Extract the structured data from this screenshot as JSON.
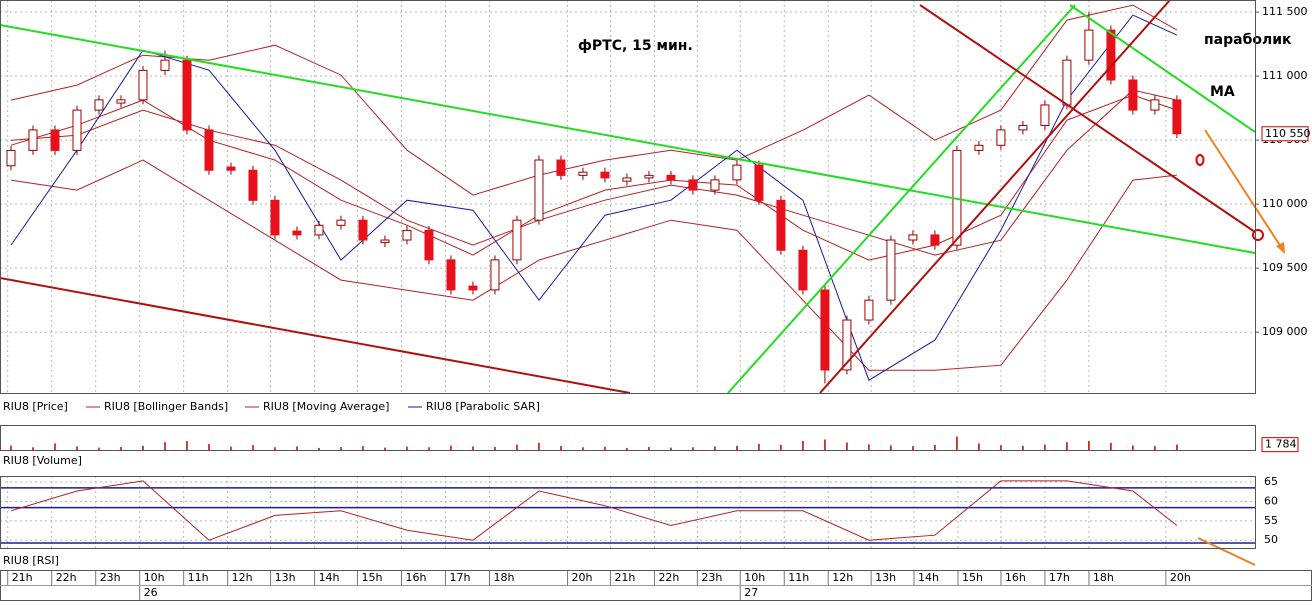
{
  "chart_data": [
    {
      "type": "candlestick",
      "name": "RIU8 [Price]",
      "title": "фРТС, 15 мин.",
      "annotations": [
        "параболик",
        "MA"
      ],
      "xlim": [
        0,
        114.1
      ],
      "ylim": [
        108525,
        111595
      ],
      "yticks": [
        {
          "value": 111500,
          "label": "111 500"
        },
        {
          "value": 111000,
          "label": "111 000"
        },
        {
          "value": 110500,
          "label": "110 500"
        },
        {
          "value": 110000,
          "label": "110 000"
        },
        {
          "value": 109500,
          "label": "109 500"
        },
        {
          "value": 109000,
          "label": "109 000"
        }
      ],
      "last_value": {
        "value": 110550,
        "label": "110 550"
      },
      "grid": true,
      "up_color": "#ffffff",
      "down_color": "#e8101a",
      "wick_color": "#8b0000",
      "x": [
        1,
        3,
        5,
        7,
        9,
        11,
        13,
        15,
        17,
        19,
        21,
        23,
        25,
        27,
        29,
        31,
        33,
        35,
        37,
        39,
        41,
        43,
        45,
        47,
        49,
        51,
        53,
        55,
        57,
        59,
        61,
        63,
        65,
        67,
        69,
        71,
        73,
        75,
        77,
        79,
        81,
        83,
        85,
        87,
        89,
        91,
        93,
        95,
        97,
        99,
        101,
        103,
        105,
        107
      ],
      "open": [
        110300,
        110420,
        110580,
        110420,
        110735,
        110790,
        110815,
        111045,
        111125,
        110580,
        110290,
        110265,
        110030,
        109790,
        109760,
        109835,
        109875,
        109700,
        109720,
        109795,
        109565,
        109360,
        109330,
        109565,
        109875,
        110345,
        110225,
        110250,
        110180,
        110205,
        110225,
        110190,
        110110,
        110190,
        110305,
        110030,
        109640,
        109330,
        108705,
        109095,
        109250,
        109720,
        109760,
        109680,
        110420,
        110460,
        110580,
        110615,
        110775,
        111125,
        111360,
        110970,
        110735,
        110815
      ],
      "high": [
        110455,
        110615,
        110615,
        110770,
        110850,
        110850,
        111080,
        111200,
        111160,
        110615,
        110325,
        110300,
        110065,
        109825,
        109870,
        109910,
        109910,
        109755,
        109830,
        109830,
        109600,
        109395,
        109600,
        109910,
        110380,
        110380,
        110285,
        110285,
        110240,
        110260,
        110260,
        110225,
        110225,
        110340,
        110340,
        110065,
        109675,
        109365,
        109130,
        109285,
        109755,
        109795,
        109795,
        110455,
        110495,
        110615,
        110650,
        110810,
        111160,
        111500,
        111395,
        111005,
        110850,
        110850
      ],
      "low": [
        110265,
        110385,
        110385,
        110385,
        110700,
        110755,
        110780,
        111010,
        110545,
        110230,
        110230,
        109995,
        109725,
        109725,
        109725,
        109800,
        109685,
        109665,
        109685,
        109530,
        109295,
        109295,
        109295,
        109530,
        109840,
        110190,
        110190,
        110170,
        110145,
        110170,
        110155,
        110075,
        110075,
        110155,
        109995,
        109605,
        109295,
        108600,
        108670,
        109060,
        109215,
        109685,
        109645,
        109645,
        110385,
        110425,
        110545,
        110580,
        110740,
        111090,
        110935,
        110700,
        110700,
        110515
      ],
      "close": [
        110420,
        110580,
        110420,
        110735,
        110815,
        110815,
        111045,
        111125,
        110580,
        110265,
        110265,
        110030,
        109760,
        109760,
        109835,
        109875,
        109720,
        109720,
        109795,
        109565,
        109330,
        109330,
        109565,
        109875,
        110345,
        110225,
        110250,
        110205,
        110205,
        110225,
        110190,
        110110,
        110190,
        110305,
        110030,
        109640,
        109330,
        108705,
        109095,
        109250,
        109720,
        109760,
        109680,
        110420,
        110460,
        110580,
        110615,
        110775,
        111125,
        111360,
        110970,
        110735,
        110815,
        110550
      ],
      "indicator_x": [
        1,
        7,
        13,
        19,
        25,
        31,
        37,
        43,
        49,
        55,
        61,
        67,
        73,
        79,
        85,
        91,
        97,
        103,
        107
      ],
      "bollinger": {
        "name": "RIU8 [Bollinger Bands]",
        "color": "#b22222",
        "upper": [
          110813,
          110930,
          111164,
          111125,
          111242,
          111008,
          110422,
          110071,
          110227,
          110344,
          110422,
          110344,
          110578,
          110852,
          110500,
          110735,
          111438,
          111555,
          111360
        ],
        "middle": [
          110500,
          110539,
          110735,
          110578,
          110461,
          110188,
          109875,
          109680,
          109875,
          110031,
          110149,
          110071,
          109914,
          109758,
          109602,
          109719,
          110422,
          110891,
          110813
        ],
        "lower": [
          110188,
          110110,
          110344,
          110031,
          109719,
          109407,
          109328,
          109250,
          109563,
          109719,
          109875,
          109797,
          109250,
          108703,
          108703,
          108742,
          109407,
          110188,
          110227
        ]
      },
      "ma": {
        "name": "RIU8 [Moving Average]",
        "color": "#b22222",
        "values": [
          110461,
          110617,
          110813,
          110500,
          110344,
          110031,
          109836,
          109602,
          109914,
          110110,
          110188,
          110149,
          109797,
          109563,
          109680,
          109914,
          110656,
          110852,
          110735
        ]
      },
      "sar": {
        "name": "RIU8 [Parabolic SAR]",
        "color": "#1a1aa0",
        "values": [
          109680,
          110422,
          111203,
          111047,
          110422,
          109563,
          110031,
          109953,
          109250,
          109914,
          110031,
          110422,
          110031,
          108625,
          108938,
          109797,
          110813,
          111477,
          111321
        ]
      }
    },
    {
      "type": "bar",
      "name": "RIU8 [Volume]",
      "color": "#c00000",
      "xlim": [
        0,
        114.1
      ],
      "ylim": [
        0,
        8000
      ],
      "last_value": {
        "value": 1784,
        "label": "1 784"
      },
      "x": [
        1,
        3,
        5,
        7,
        9,
        11,
        13,
        15,
        17,
        19,
        21,
        23,
        25,
        27,
        29,
        31,
        33,
        35,
        37,
        39,
        41,
        43,
        45,
        47,
        49,
        51,
        53,
        55,
        57,
        59,
        61,
        63,
        65,
        67,
        69,
        71,
        73,
        75,
        77,
        79,
        81,
        83,
        85,
        87,
        89,
        91,
        93,
        95,
        97,
        99,
        101,
        103,
        105,
        107
      ],
      "values": [
        1500,
        900,
        2200,
        1200,
        800,
        1000,
        1400,
        2600,
        3000,
        2000,
        1100,
        1600,
        900,
        1200,
        700,
        1000,
        1300,
        800,
        1100,
        900,
        1500,
        1200,
        1000,
        1800,
        2400,
        1300,
        900,
        1100,
        700,
        1000,
        800,
        900,
        1200,
        1400,
        2000,
        1700,
        3000,
        3500,
        2500,
        1900,
        1500,
        1300,
        1700,
        4500,
        2200,
        1600,
        1400,
        1800,
        2600,
        3000,
        2400,
        1500,
        1300,
        1784
      ]
    },
    {
      "type": "line",
      "name": "RIU8 [RSI]",
      "color": "#b22222",
      "level_color": "#1a1aa0",
      "xlim": [
        0,
        114.1
      ],
      "ylim": [
        48,
        66.3
      ],
      "yticks": [
        65,
        60,
        55,
        50
      ],
      "levels": [
        63.5,
        58.4,
        49.3
      ],
      "x": [
        1,
        7,
        13,
        19,
        25,
        31,
        37,
        43,
        49,
        55,
        61,
        67,
        73,
        79,
        85,
        91,
        97,
        103,
        107
      ],
      "values": [
        57.6,
        62.7,
        65.3,
        50.0,
        56.4,
        57.6,
        52.6,
        50.0,
        62.7,
        58.9,
        53.8,
        57.6,
        57.6,
        50.0,
        51.3,
        65.3,
        65.3,
        62.7,
        53.8
      ],
      "xticks": [
        {
          "value": 0.7,
          "label": "21h"
        },
        {
          "value": 4.7,
          "label": "22h"
        },
        {
          "value": 8.7,
          "label": "23h"
        },
        {
          "value": 12.7,
          "label": "10h"
        },
        {
          "value": 16.7,
          "label": "11h"
        },
        {
          "value": 20.7,
          "label": "12h"
        },
        {
          "value": 24.6,
          "label": "13h"
        },
        {
          "value": 28.6,
          "label": "14h"
        },
        {
          "value": 32.5,
          "label": "15h"
        },
        {
          "value": 36.5,
          "label": "16h"
        },
        {
          "value": 40.5,
          "label": "17h"
        },
        {
          "value": 44.5,
          "label": "18h"
        },
        {
          "value": 51.6,
          "label": "20h"
        },
        {
          "value": 55.5,
          "label": "21h"
        },
        {
          "value": 59.5,
          "label": "22h"
        },
        {
          "value": 63.4,
          "label": "23h"
        },
        {
          "value": 67.3,
          "label": "10h"
        },
        {
          "value": 71.3,
          "label": "11h"
        },
        {
          "value": 75.3,
          "label": "12h"
        },
        {
          "value": 79.2,
          "label": "13h"
        },
        {
          "value": 83.1,
          "label": "14h"
        },
        {
          "value": 87.1,
          "label": "15h"
        },
        {
          "value": 91,
          "label": "16h"
        },
        {
          "value": 95,
          "label": "17h"
        },
        {
          "value": 99,
          "label": "18h"
        },
        {
          "value": 106,
          "label": "20h"
        }
      ],
      "date_ticks": [
        {
          "value": 12.7,
          "label": "26"
        },
        {
          "value": 67.3,
          "label": "27"
        }
      ]
    }
  ]
}
